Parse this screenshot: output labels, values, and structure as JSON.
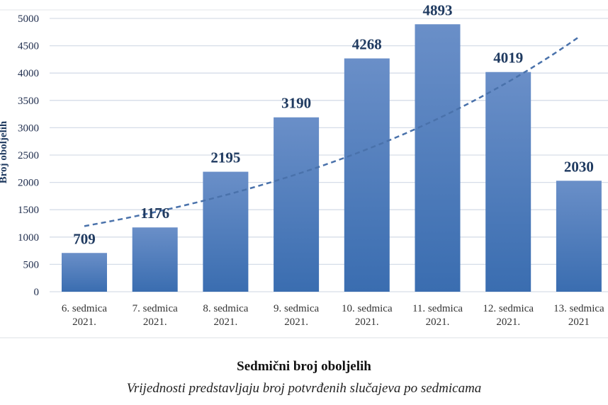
{
  "chart_data": {
    "type": "bar",
    "title": "Sedmični broj oboljelih",
    "subtitle": "Vrijednosti predstavljaju broj potvrđenih slučajeva po sedmicama",
    "xlabel": "",
    "ylabel": "Broj oboljelih",
    "ylim": [
      0,
      5000
    ],
    "yticks": [
      0,
      500,
      1000,
      1500,
      2000,
      2500,
      3000,
      3500,
      4000,
      4500,
      5000
    ],
    "grid": true,
    "categories": [
      [
        "6. sedmica",
        "2021."
      ],
      [
        "7. sedmica",
        "2021."
      ],
      [
        "8. sedmica",
        "2021."
      ],
      [
        "9. sedmica",
        "2021."
      ],
      [
        "10. sedmica",
        "2021."
      ],
      [
        "11. sedmica",
        "2021."
      ],
      [
        "12. sedmica",
        "2021."
      ],
      [
        "13. sedmica",
        "2021"
      ]
    ],
    "values": [
      709,
      1176,
      2195,
      3190,
      4268,
      4893,
      4019,
      2030
    ],
    "trendline": {
      "type": "exponential",
      "start": 1200,
      "end": 4660,
      "style": "dashed"
    },
    "colors": {
      "bar_top": "#6a8fc8",
      "bar_bottom": "#3a6db0",
      "trend": "#4a72ab",
      "grid": "#d6dde8"
    }
  }
}
